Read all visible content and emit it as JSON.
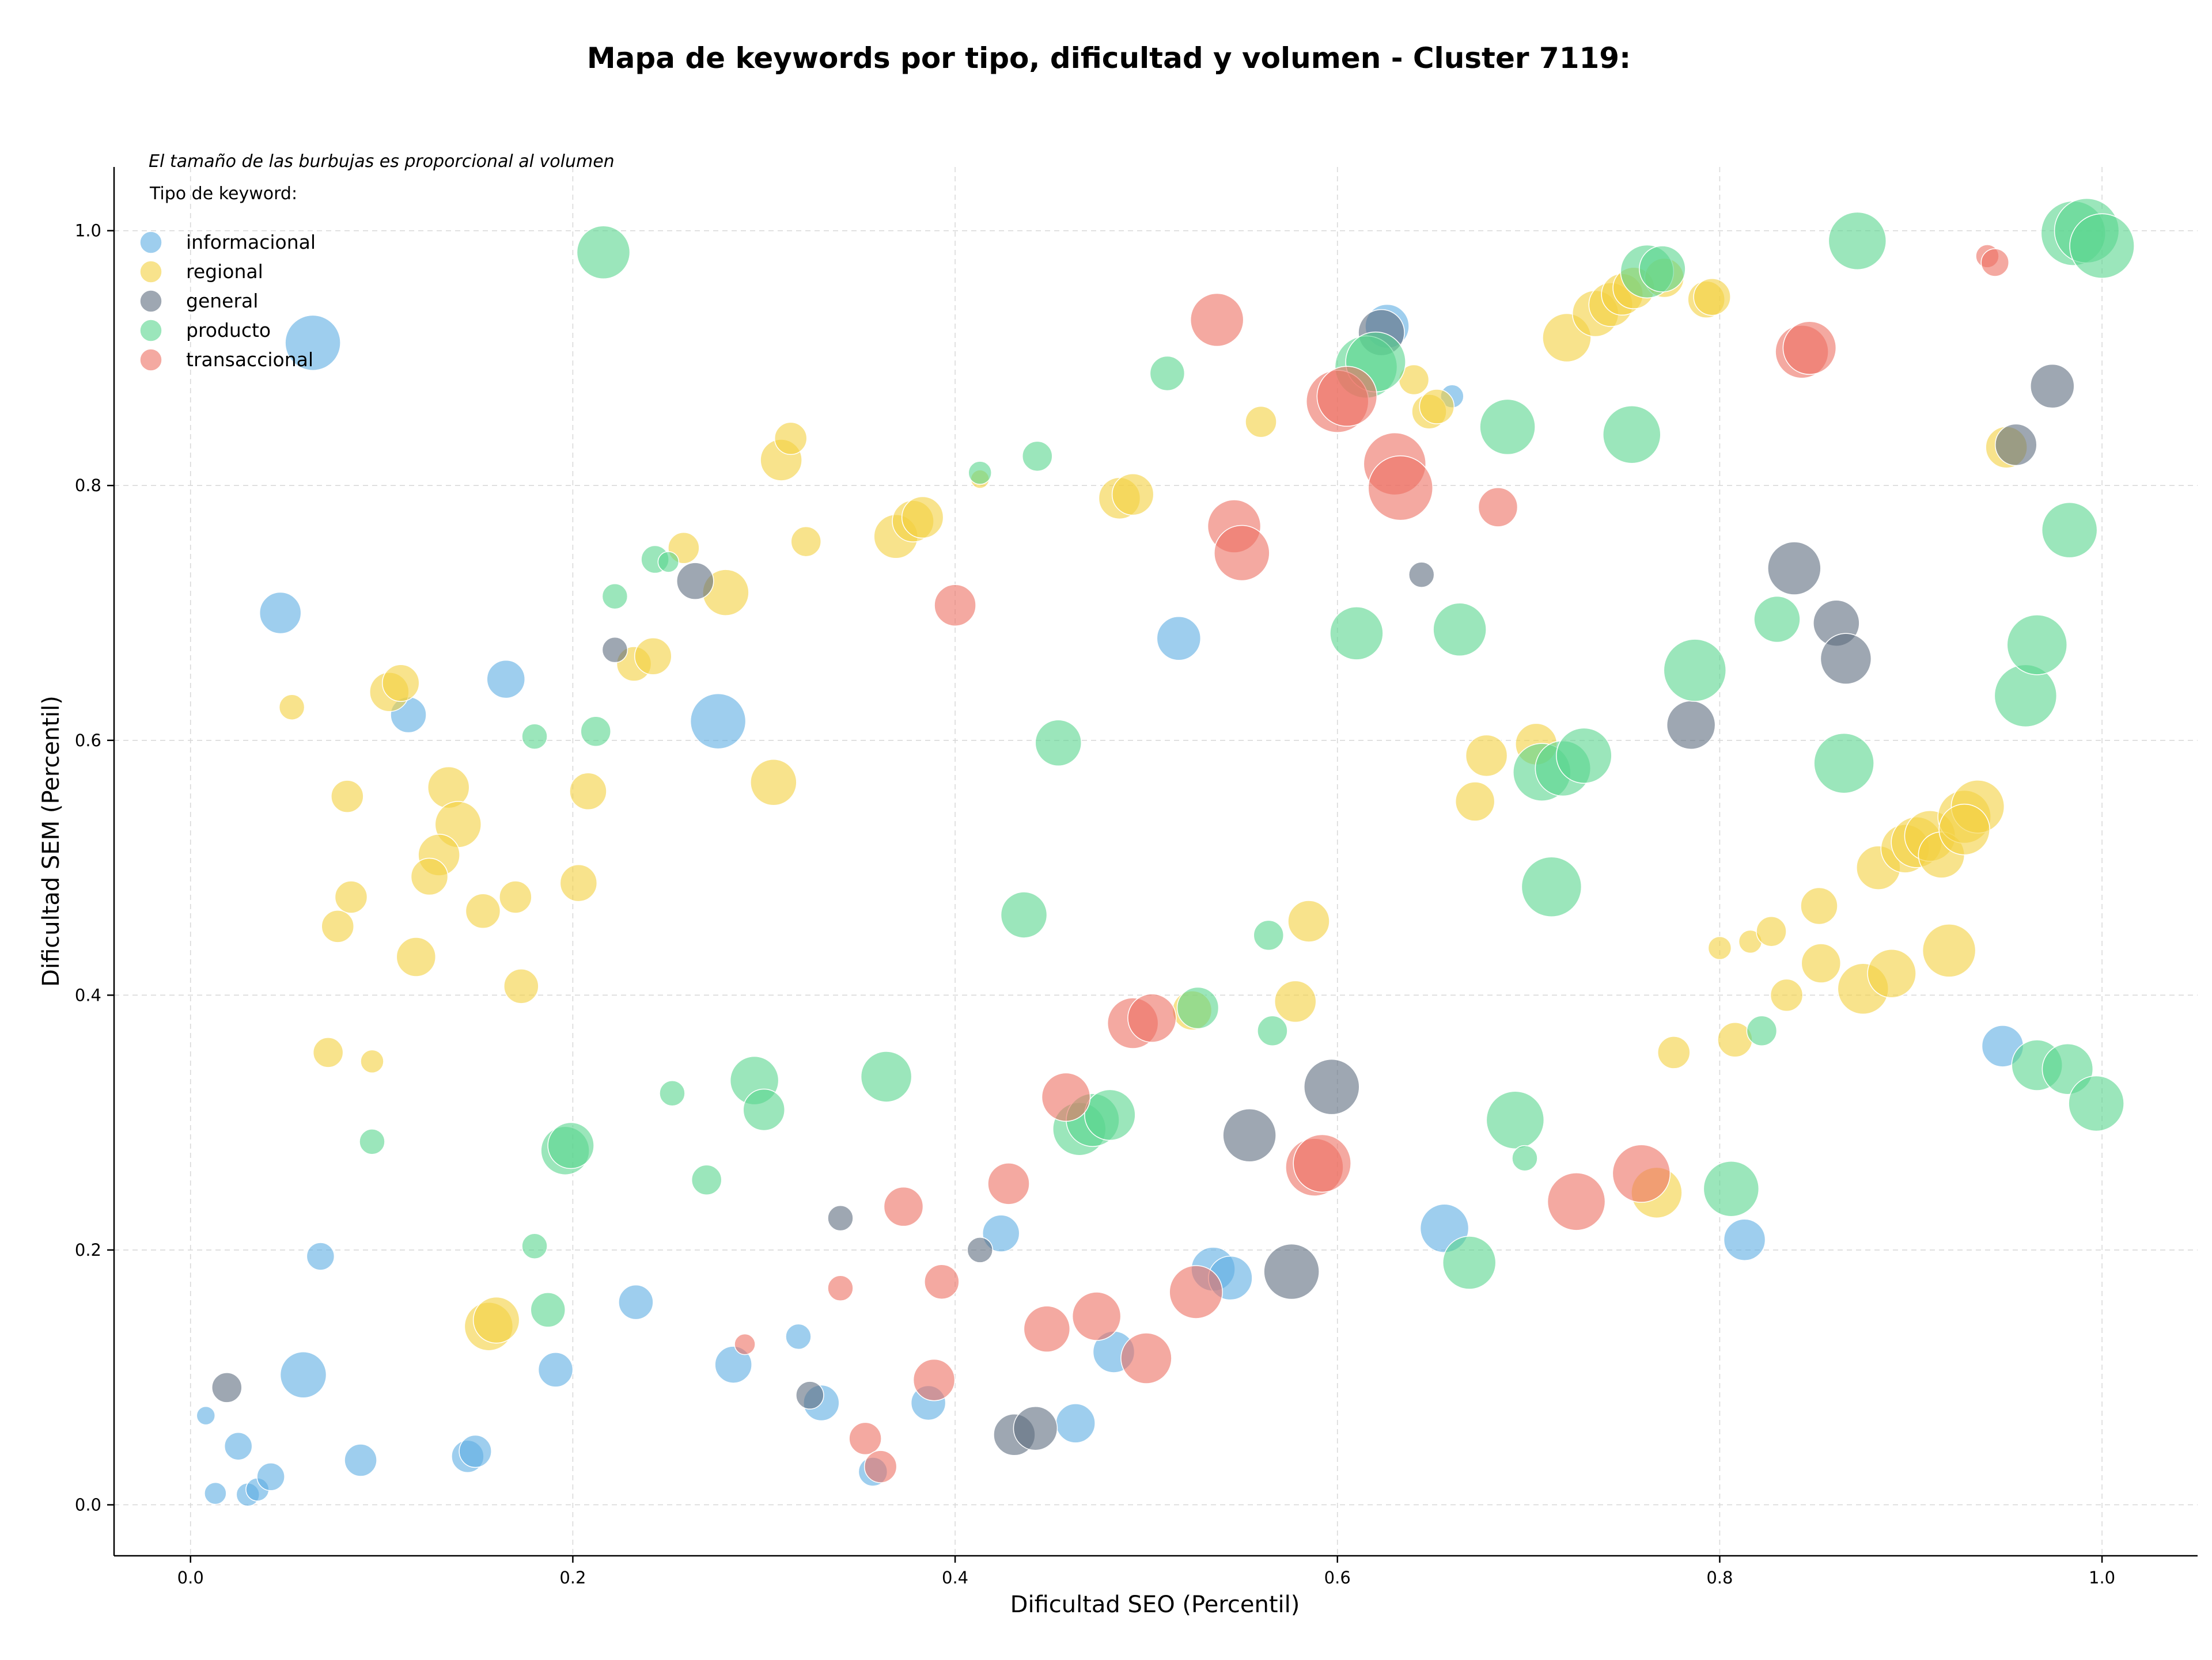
{
  "chart_data": {
    "type": "scatter",
    "title": "Mapa de keywords por tipo, dificultad y volumen - Cluster 7119:",
    "xlabel": "Dificultad SEO (Percentil)",
    "ylabel": "Dificultad SEM (Percentil)",
    "xlim": [
      -0.04,
      1.05
    ],
    "ylim": [
      -0.04,
      1.05
    ],
    "xticks": [
      0.0,
      0.2,
      0.4,
      0.6,
      0.8,
      1.0
    ],
    "yticks": [
      0.0,
      0.2,
      0.4,
      0.6,
      0.8,
      1.0
    ],
    "xtick_labels": [
      "0.0",
      "0.2",
      "0.4",
      "0.6",
      "0.8",
      "1.0"
    ],
    "ytick_labels": [
      "0.0",
      "0.2",
      "0.4",
      "0.6",
      "0.8",
      "1.0"
    ],
    "grid": true,
    "size_note": "El tamaño de las burbujas es proporcional al volumen",
    "legend_title": "Tipo de keyword:",
    "legend_position": "top-left",
    "series": [
      {
        "name": "informacional",
        "color": "#5DADE2",
        "points": [
          [
            0.064,
            0.912,
            48
          ],
          [
            0.047,
            0.7,
            36
          ],
          [
            0.114,
            0.62,
            31
          ],
          [
            0.165,
            0.648,
            33
          ],
          [
            0.276,
            0.615,
            48
          ],
          [
            0.517,
            0.68,
            38
          ],
          [
            0.626,
            0.925,
            38
          ],
          [
            0.66,
            0.87,
            20
          ],
          [
            0.068,
            0.195,
            24
          ],
          [
            0.059,
            0.102,
            40
          ],
          [
            0.008,
            0.07,
            16
          ],
          [
            0.025,
            0.046,
            24
          ],
          [
            0.013,
            0.009,
            19
          ],
          [
            0.03,
            0.008,
            20
          ],
          [
            0.035,
            0.012,
            20
          ],
          [
            0.042,
            0.022,
            24
          ],
          [
            0.089,
            0.035,
            28
          ],
          [
            0.145,
            0.038,
            28
          ],
          [
            0.149,
            0.042,
            28
          ],
          [
            0.191,
            0.106,
            30
          ],
          [
            0.233,
            0.159,
            30
          ],
          [
            0.284,
            0.11,
            32
          ],
          [
            0.318,
            0.132,
            22
          ],
          [
            0.33,
            0.08,
            31
          ],
          [
            0.357,
            0.026,
            25
          ],
          [
            0.386,
            0.08,
            30
          ],
          [
            0.424,
            0.213,
            32
          ],
          [
            0.463,
            0.064,
            34
          ],
          [
            0.483,
            0.12,
            36
          ],
          [
            0.535,
            0.185,
            38
          ],
          [
            0.544,
            0.178,
            38
          ],
          [
            0.656,
            0.217,
            42
          ],
          [
            0.813,
            0.208,
            36
          ],
          [
            0.948,
            0.36,
            36
          ]
        ]
      },
      {
        "name": "regional",
        "color": "#F4D03F",
        "points": [
          [
            0.053,
            0.626,
            22
          ],
          [
            0.082,
            0.556,
            28
          ],
          [
            0.077,
            0.454,
            28
          ],
          [
            0.084,
            0.477,
            28
          ],
          [
            0.072,
            0.355,
            26
          ],
          [
            0.095,
            0.348,
            20
          ],
          [
            0.104,
            0.638,
            34
          ],
          [
            0.11,
            0.645,
            32
          ],
          [
            0.135,
            0.563,
            36
          ],
          [
            0.14,
            0.534,
            40
          ],
          [
            0.13,
            0.51,
            36
          ],
          [
            0.125,
            0.493,
            32
          ],
          [
            0.118,
            0.43,
            34
          ],
          [
            0.153,
            0.466,
            30
          ],
          [
            0.17,
            0.477,
            28
          ],
          [
            0.173,
            0.407,
            30
          ],
          [
            0.203,
            0.488,
            32
          ],
          [
            0.208,
            0.56,
            32
          ],
          [
            0.232,
            0.66,
            30
          ],
          [
            0.242,
            0.666,
            32
          ],
          [
            0.258,
            0.751,
            27
          ],
          [
            0.28,
            0.716,
            40
          ],
          [
            0.305,
            0.567,
            40
          ],
          [
            0.309,
            0.82,
            36
          ],
          [
            0.314,
            0.837,
            28
          ],
          [
            0.322,
            0.756,
            26
          ],
          [
            0.369,
            0.76,
            38
          ],
          [
            0.378,
            0.772,
            36
          ],
          [
            0.383,
            0.775,
            36
          ],
          [
            0.413,
            0.805,
            16
          ],
          [
            0.486,
            0.79,
            36
          ],
          [
            0.493,
            0.793,
            36
          ],
          [
            0.156,
            0.14,
            42
          ],
          [
            0.16,
            0.145,
            40
          ],
          [
            0.524,
            0.388,
            34
          ],
          [
            0.56,
            0.85,
            27
          ],
          [
            0.578,
            0.395,
            36
          ],
          [
            0.585,
            0.458,
            36
          ],
          [
            0.64,
            0.883,
            26
          ],
          [
            0.648,
            0.858,
            30
          ],
          [
            0.652,
            0.862,
            30
          ],
          [
            0.672,
            0.552,
            34
          ],
          [
            0.678,
            0.588,
            36
          ],
          [
            0.704,
            0.597,
            36
          ],
          [
            0.72,
            0.916,
            42
          ],
          [
            0.735,
            0.935,
            40
          ],
          [
            0.743,
            0.942,
            38
          ],
          [
            0.749,
            0.95,
            36
          ],
          [
            0.755,
            0.955,
            36
          ],
          [
            0.771,
            0.963,
            34
          ],
          [
            0.793,
            0.946,
            32
          ],
          [
            0.796,
            0.948,
            32
          ],
          [
            0.767,
            0.245,
            44
          ],
          [
            0.776,
            0.355,
            28
          ],
          [
            0.8,
            0.437,
            20
          ],
          [
            0.808,
            0.365,
            30
          ],
          [
            0.816,
            0.442,
            20
          ],
          [
            0.827,
            0.45,
            26
          ],
          [
            0.835,
            0.4,
            28
          ],
          [
            0.852,
            0.47,
            32
          ],
          [
            0.853,
            0.425,
            34
          ],
          [
            0.875,
            0.405,
            44
          ],
          [
            0.883,
            0.5,
            38
          ],
          [
            0.89,
            0.417,
            42
          ],
          [
            0.897,
            0.515,
            42
          ],
          [
            0.903,
            0.52,
            44
          ],
          [
            0.91,
            0.525,
            44
          ],
          [
            0.916,
            0.51,
            40
          ],
          [
            0.92,
            0.435,
            46
          ],
          [
            0.928,
            0.54,
            46
          ],
          [
            0.935,
            0.548,
            46
          ],
          [
            0.95,
            0.83,
            36
          ],
          [
            0.928,
            0.53,
            44
          ]
        ]
      },
      {
        "name": "general",
        "color": "#5D6D7E",
        "points": [
          [
            0.019,
            0.092,
            26
          ],
          [
            0.222,
            0.671,
            22
          ],
          [
            0.264,
            0.725,
            32
          ],
          [
            0.324,
            0.086,
            24
          ],
          [
            0.34,
            0.225,
            22
          ],
          [
            0.413,
            0.2,
            22
          ],
          [
            0.431,
            0.055,
            36
          ],
          [
            0.442,
            0.06,
            38
          ],
          [
            0.554,
            0.29,
            46
          ],
          [
            0.576,
            0.183,
            48
          ],
          [
            0.597,
            0.328,
            48
          ],
          [
            0.623,
            0.92,
            40
          ],
          [
            0.644,
            0.73,
            22
          ],
          [
            0.785,
            0.612,
            42
          ],
          [
            0.839,
            0.735,
            46
          ],
          [
            0.861,
            0.692,
            40
          ],
          [
            0.866,
            0.664,
            44
          ],
          [
            0.955,
            0.832,
            36
          ],
          [
            0.974,
            0.878,
            38
          ]
        ]
      },
      {
        "name": "producto",
        "color": "#58D68D",
        "points": [
          [
            0.216,
            0.983,
            46
          ],
          [
            0.222,
            0.713,
            22
          ],
          [
            0.243,
            0.742,
            24
          ],
          [
            0.25,
            0.74,
            18
          ],
          [
            0.18,
            0.603,
            22
          ],
          [
            0.212,
            0.607,
            26
          ],
          [
            0.095,
            0.285,
            22
          ],
          [
            0.18,
            0.203,
            22
          ],
          [
            0.187,
            0.153,
            30
          ],
          [
            0.196,
            0.278,
            42
          ],
          [
            0.199,
            0.282,
            40
          ],
          [
            0.252,
            0.323,
            22
          ],
          [
            0.27,
            0.255,
            26
          ],
          [
            0.295,
            0.333,
            42
          ],
          [
            0.3,
            0.31,
            36
          ],
          [
            0.364,
            0.336,
            44
          ],
          [
            0.413,
            0.81,
            20
          ],
          [
            0.443,
            0.823,
            26
          ],
          [
            0.436,
            0.463,
            40
          ],
          [
            0.454,
            0.598,
            40
          ],
          [
            0.465,
            0.295,
            46
          ],
          [
            0.472,
            0.302,
            46
          ],
          [
            0.481,
            0.306,
            44
          ],
          [
            0.511,
            0.888,
            30
          ],
          [
            0.527,
            0.39,
            36
          ],
          [
            0.564,
            0.447,
            26
          ],
          [
            0.566,
            0.372,
            26
          ],
          [
            0.61,
            0.684,
            46
          ],
          [
            0.615,
            0.893,
            54
          ],
          [
            0.62,
            0.897,
            52
          ],
          [
            0.664,
            0.687,
            46
          ],
          [
            0.669,
            0.19,
            46
          ],
          [
            0.689,
            0.846,
            48
          ],
          [
            0.693,
            0.302,
            50
          ],
          [
            0.698,
            0.272,
            22
          ],
          [
            0.707,
            0.575,
            50
          ],
          [
            0.712,
            0.485,
            52
          ],
          [
            0.718,
            0.578,
            48
          ],
          [
            0.729,
            0.588,
            48
          ],
          [
            0.754,
            0.84,
            50
          ],
          [
            0.762,
            0.968,
            46
          ],
          [
            0.77,
            0.97,
            40
          ],
          [
            0.787,
            0.655,
            54
          ],
          [
            0.806,
            0.248,
            48
          ],
          [
            0.822,
            0.372,
            26
          ],
          [
            0.83,
            0.695,
            40
          ],
          [
            0.865,
            0.582,
            52
          ],
          [
            0.872,
            0.992,
            50
          ],
          [
            0.96,
            0.635,
            54
          ],
          [
            0.966,
            0.675,
            52
          ],
          [
            0.966,
            0.345,
            44
          ],
          [
            0.982,
            0.342,
            44
          ],
          [
            0.983,
            0.765,
            48
          ],
          [
            0.985,
            0.998,
            56
          ],
          [
            0.992,
            1.0,
            56
          ],
          [
            0.997,
            0.315,
            48
          ],
          [
            1.0,
            0.988,
            56
          ]
        ]
      },
      {
        "name": "transaccional",
        "color": "#EC7063",
        "points": [
          [
            0.29,
            0.126,
            18
          ],
          [
            0.34,
            0.17,
            22
          ],
          [
            0.353,
            0.052,
            28
          ],
          [
            0.361,
            0.03,
            28
          ],
          [
            0.373,
            0.234,
            34
          ],
          [
            0.393,
            0.175,
            30
          ],
          [
            0.389,
            0.098,
            36
          ],
          [
            0.4,
            0.706,
            36
          ],
          [
            0.428,
            0.252,
            36
          ],
          [
            0.448,
            0.138,
            40
          ],
          [
            0.458,
            0.32,
            42
          ],
          [
            0.474,
            0.148,
            42
          ],
          [
            0.493,
            0.378,
            44
          ],
          [
            0.503,
            0.382,
            42
          ],
          [
            0.5,
            0.115,
            44
          ],
          [
            0.526,
            0.167,
            46
          ],
          [
            0.537,
            0.93,
            46
          ],
          [
            0.546,
            0.768,
            46
          ],
          [
            0.55,
            0.747,
            48
          ],
          [
            0.588,
            0.265,
            50
          ],
          [
            0.592,
            0.268,
            50
          ],
          [
            0.6,
            0.866,
            54
          ],
          [
            0.605,
            0.87,
            52
          ],
          [
            0.63,
            0.817,
            54
          ],
          [
            0.633,
            0.798,
            56
          ],
          [
            0.684,
            0.783,
            34
          ],
          [
            0.725,
            0.238,
            50
          ],
          [
            0.759,
            0.26,
            50
          ],
          [
            0.843,
            0.905,
            46
          ],
          [
            0.847,
            0.908,
            46
          ],
          [
            0.94,
            0.98,
            20
          ],
          [
            0.944,
            0.975,
            24
          ]
        ]
      }
    ]
  }
}
